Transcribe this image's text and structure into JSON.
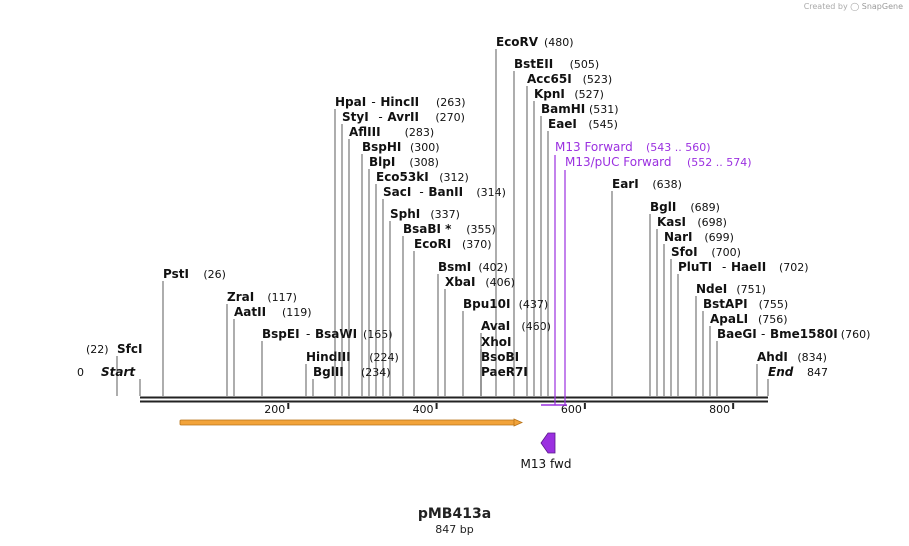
{
  "credit": {
    "created_by": "Created by",
    "app": "SnapGene"
  },
  "map": {
    "name": "pMB413a",
    "length_label": "847 bp",
    "length": 847,
    "start_marker": {
      "label": "Start",
      "pos": "0"
    },
    "end_marker": {
      "label": "End",
      "pos": "847"
    },
    "ticks": [
      "200",
      "400",
      "600",
      "800"
    ],
    "features": [
      {
        "label": "M13 fwd",
        "type": "primer-binding",
        "start": 543,
        "end": 560
      },
      {
        "label": "",
        "type": "orange-feature",
        "start": 55,
        "end": 519
      }
    ],
    "primers": [
      {
        "label": "M13 Forward",
        "range": "(543 .. 560)"
      },
      {
        "label": "M13/pUC Forward",
        "range": "(552 .. 574)"
      }
    ],
    "sites": [
      {
        "name": "SfcI",
        "pos": "(22)"
      },
      {
        "name": "PstI",
        "pos": "(26)"
      },
      {
        "name": "ZraI",
        "pos": "(117)"
      },
      {
        "name": "AatII",
        "pos": "(119)"
      },
      {
        "name": "BspEI",
        "name2": "BsaWI",
        "pos": "(165)"
      },
      {
        "name": "HindIII",
        "pos": "(224)"
      },
      {
        "name": "BglII",
        "pos": "(234)"
      },
      {
        "name": "HpaI",
        "name2": "HincII",
        "pos": "(263)"
      },
      {
        "name": "StyI",
        "name2": "AvrII",
        "pos": "(270)"
      },
      {
        "name": "AflIII",
        "pos": "(283)"
      },
      {
        "name": "BspHI",
        "pos": "(300)"
      },
      {
        "name": "BlpI",
        "pos": "(308)"
      },
      {
        "name": "Eco53kI",
        "pos": "(312)"
      },
      {
        "name": "SacI",
        "name2": "BanII",
        "pos": "(314)"
      },
      {
        "name": "SphI",
        "pos": "(337)"
      },
      {
        "name": "BsaBI *",
        "pos": "(355)"
      },
      {
        "name": "EcoRI",
        "pos": "(370)"
      },
      {
        "name": "BsmI",
        "pos": "(402)"
      },
      {
        "name": "XbaI",
        "pos": "(406)"
      },
      {
        "name": "Bpu10I",
        "pos": "(437)"
      },
      {
        "name": "AvaI",
        "pos": "(460)"
      },
      {
        "name": "XhoI",
        "pos": ""
      },
      {
        "name": "BsoBI",
        "pos": ""
      },
      {
        "name": "PaeR7I",
        "pos": ""
      },
      {
        "name": "EcoRV",
        "pos": "(480)"
      },
      {
        "name": "BstEII",
        "pos": "(505)"
      },
      {
        "name": "Acc65I",
        "pos": "(523)"
      },
      {
        "name": "KpnI",
        "pos": "(527)"
      },
      {
        "name": "BamHI",
        "pos": "(531)"
      },
      {
        "name": "EaeI",
        "pos": "(545)"
      },
      {
        "name": "EarI",
        "pos": "(638)"
      },
      {
        "name": "BglI",
        "pos": "(689)"
      },
      {
        "name": "KasI",
        "pos": "(698)"
      },
      {
        "name": "NarI",
        "pos": "(699)"
      },
      {
        "name": "SfoI",
        "pos": "(700)"
      },
      {
        "name": "PluTI",
        "name2": "HaeII",
        "pos": "(702)"
      },
      {
        "name": "NdeI",
        "pos": "(751)"
      },
      {
        "name": "BstAPI",
        "pos": "(755)"
      },
      {
        "name": "ApaLI",
        "pos": "(756)"
      },
      {
        "name": "BaeGI",
        "name2": "Bme1580I",
        "pos": "(760)"
      },
      {
        "name": "AhdI",
        "pos": "(834)"
      }
    ]
  },
  "colors": {
    "text": "#111111",
    "line": "#333333",
    "primer": "#9b30e0",
    "feature": "#f2a33a",
    "feature_dark": "#b8741a",
    "arrow": "#9b30e0"
  }
}
